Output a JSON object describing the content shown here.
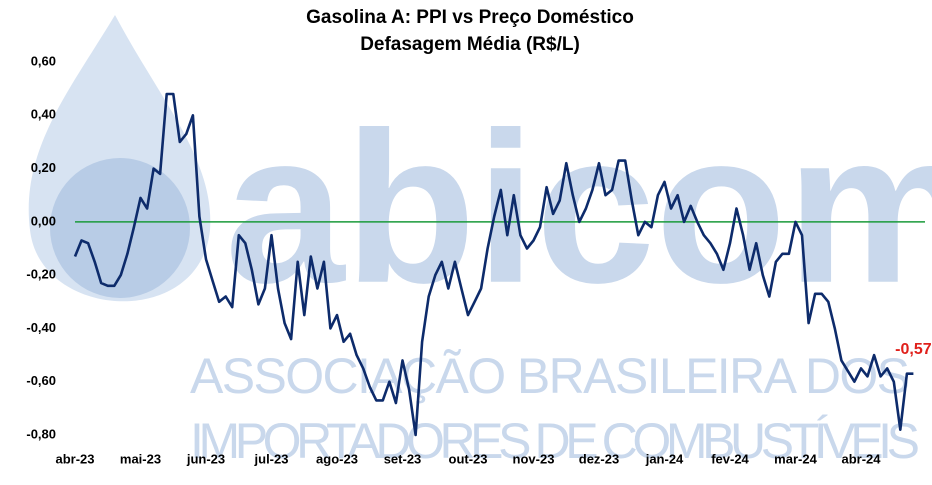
{
  "chart_data": {
    "type": "line",
    "title": "Gasolina A: PPI vs Preço Doméstico",
    "subtitle": "Defasagem Média (R$/L)",
    "watermark": {
      "brand": "abicom",
      "line1": "ASSOCIAÇÃO BRASILEIRA DOS",
      "line2": "IMPORTADORES DE COMBUSTÍVEIS"
    },
    "categories": [
      "abr-23",
      null,
      null,
      null,
      null,
      null,
      null,
      null,
      null,
      null,
      "mai-23",
      null,
      null,
      null,
      null,
      null,
      null,
      null,
      null,
      null,
      "jun-23",
      null,
      null,
      null,
      null,
      null,
      null,
      null,
      null,
      null,
      "jul-23",
      null,
      null,
      null,
      null,
      null,
      null,
      null,
      null,
      null,
      "ago-23",
      null,
      null,
      null,
      null,
      null,
      null,
      null,
      null,
      null,
      "set-23",
      null,
      null,
      null,
      null,
      null,
      null,
      null,
      null,
      null,
      "out-23",
      null,
      null,
      null,
      null,
      null,
      null,
      null,
      null,
      null,
      "nov-23",
      null,
      null,
      null,
      null,
      null,
      null,
      null,
      null,
      null,
      "dez-23",
      null,
      null,
      null,
      null,
      null,
      null,
      null,
      null,
      null,
      "jan-24",
      null,
      null,
      null,
      null,
      null,
      null,
      null,
      null,
      null,
      "fev-24",
      null,
      null,
      null,
      null,
      null,
      null,
      null,
      null,
      null,
      "mar-24",
      null,
      null,
      null,
      null,
      null,
      null,
      null,
      null,
      null,
      "abr-24",
      null,
      null,
      null,
      null,
      null,
      null,
      null,
      null
    ],
    "values": [
      -0.13,
      -0.07,
      -0.08,
      -0.15,
      -0.23,
      -0.24,
      -0.24,
      -0.2,
      -0.12,
      -0.02,
      0.09,
      0.05,
      0.2,
      0.18,
      0.48,
      0.48,
      0.3,
      0.33,
      0.4,
      0.02,
      -0.14,
      -0.22,
      -0.3,
      -0.28,
      -0.32,
      -0.05,
      -0.08,
      -0.18,
      -0.31,
      -0.25,
      -0.05,
      -0.25,
      -0.38,
      -0.44,
      -0.15,
      -0.35,
      -0.13,
      -0.25,
      -0.15,
      -0.4,
      -0.35,
      -0.45,
      -0.42,
      -0.5,
      -0.55,
      -0.62,
      -0.67,
      -0.67,
      -0.6,
      -0.68,
      -0.52,
      -0.63,
      -0.8,
      -0.45,
      -0.28,
      -0.2,
      -0.15,
      -0.25,
      -0.15,
      -0.25,
      -0.35,
      -0.3,
      -0.25,
      -0.1,
      0.02,
      0.12,
      -0.05,
      0.1,
      -0.05,
      -0.1,
      -0.07,
      -0.02,
      0.13,
      0.03,
      0.08,
      0.22,
      0.1,
      0.0,
      0.05,
      0.12,
      0.22,
      0.1,
      0.12,
      0.23,
      0.23,
      0.08,
      -0.05,
      0.0,
      -0.02,
      0.1,
      0.15,
      0.05,
      0.1,
      0.0,
      0.06,
      0.0,
      -0.05,
      -0.08,
      -0.12,
      -0.18,
      -0.08,
      0.05,
      -0.05,
      -0.18,
      -0.08,
      -0.2,
      -0.28,
      -0.15,
      -0.12,
      -0.12,
      0.0,
      -0.05,
      -0.38,
      -0.27,
      -0.27,
      -0.3,
      -0.4,
      -0.52,
      -0.56,
      -0.6,
      -0.55,
      -0.58,
      -0.5,
      -0.58,
      -0.55,
      -0.6,
      -0.78,
      -0.57,
      -0.57
    ],
    "value_labels": [
      null,
      null,
      null,
      null,
      null,
      null,
      null,
      null,
      null,
      null,
      null,
      null,
      null,
      null,
      null,
      null,
      null,
      null,
      null,
      null,
      null,
      null,
      null,
      null,
      null,
      null,
      null,
      null,
      null,
      null,
      null,
      null,
      null,
      null,
      null,
      null,
      null,
      null,
      null,
      null,
      null,
      null,
      null,
      null,
      null,
      null,
      null,
      null,
      null,
      null,
      null,
      null,
      null,
      null,
      null,
      null,
      null,
      null,
      null,
      null,
      null,
      null,
      null,
      null,
      null,
      null,
      null,
      null,
      null,
      null,
      null,
      null,
      null,
      null,
      null,
      null,
      null,
      null,
      null,
      null,
      null,
      null,
      null,
      null,
      null,
      null,
      null,
      null,
      null,
      null,
      null,
      null,
      null,
      null,
      null,
      null,
      null,
      null,
      null,
      null,
      null,
      null,
      null,
      null,
      null,
      null,
      null,
      null,
      null,
      null,
      null,
      null,
      null,
      null,
      null,
      null,
      null,
      null,
      null,
      null,
      null,
      null,
      null,
      null,
      null,
      null,
      null,
      null,
      "-0,57"
    ],
    "color": "#0d2b6b",
    "value_label_color": "#e0201b",
    "reference_line": {
      "value": 0,
      "color": "#1a9a3a"
    },
    "ylim": [
      -0.8,
      0.6
    ],
    "yticks": [
      {
        "value": -0.8,
        "label": "-0,80"
      },
      {
        "value": -0.6,
        "label": "-0,60"
      },
      {
        "value": -0.4,
        "label": "-0,40"
      },
      {
        "value": -0.2,
        "label": "-0,20"
      },
      {
        "value": 0,
        "label": "0,00"
      },
      {
        "value": 0.2,
        "label": "0,20"
      },
      {
        "value": 0.4,
        "label": "0,40"
      },
      {
        "value": 0.6,
        "label": "0,60"
      }
    ],
    "grid": false
  }
}
